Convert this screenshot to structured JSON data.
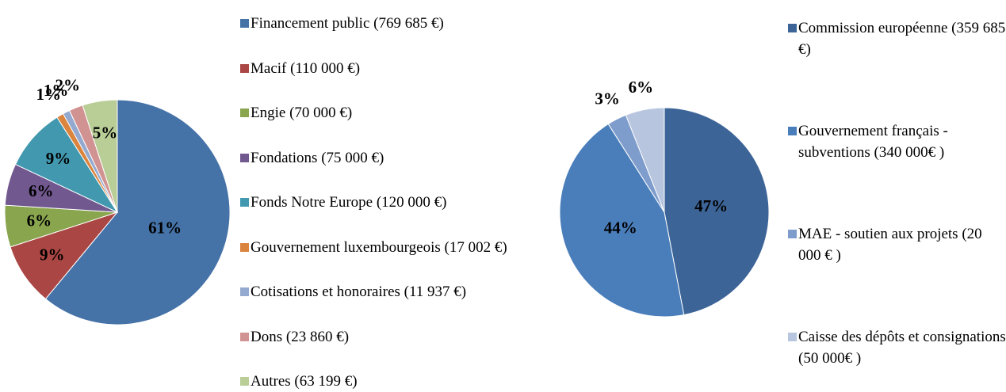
{
  "chart_data": [
    {
      "type": "pie",
      "categories": [
        "Financement public (769 685 €)",
        "Macif (110 000 €)",
        "Engie (70 000 €)",
        "Fondations (75 000 €)",
        "Fonds Notre Europe (120 000 €)",
        "Gouvernement luxembourgeois (17 002 €)",
        "Cotisations et honoraires (11 937 €)",
        "Dons (23 860 €)",
        "Autres (63 199 €)"
      ],
      "values": [
        61,
        9,
        6,
        6,
        9,
        1,
        1,
        2,
        5
      ],
      "value_labels": [
        "61%",
        "9%",
        "6%",
        "6%",
        "9%",
        "1%",
        "1%",
        "2%",
        "5%"
      ],
      "colors": [
        "#4572a7",
        "#aa4643",
        "#89a54e",
        "#71588f",
        "#4198af",
        "#db843d",
        "#93a9cf",
        "#d19392",
        "#b9cd96"
      ]
    },
    {
      "type": "pie",
      "categories": [
        "Commission européenne (359 685 €)",
        "Gouvernement français - subventions (340 000€ )",
        "MAE - soutien aux projets (20 000 € )",
        "Caisse des dépôts et consignations (50 000€ )"
      ],
      "values": [
        47,
        44,
        3,
        6
      ],
      "value_labels": [
        "47%",
        "44%",
        "3%",
        "6%"
      ],
      "colors": [
        "#3c6497",
        "#4a7ebb",
        "#7f9dcc",
        "#b7c5df"
      ]
    }
  ]
}
